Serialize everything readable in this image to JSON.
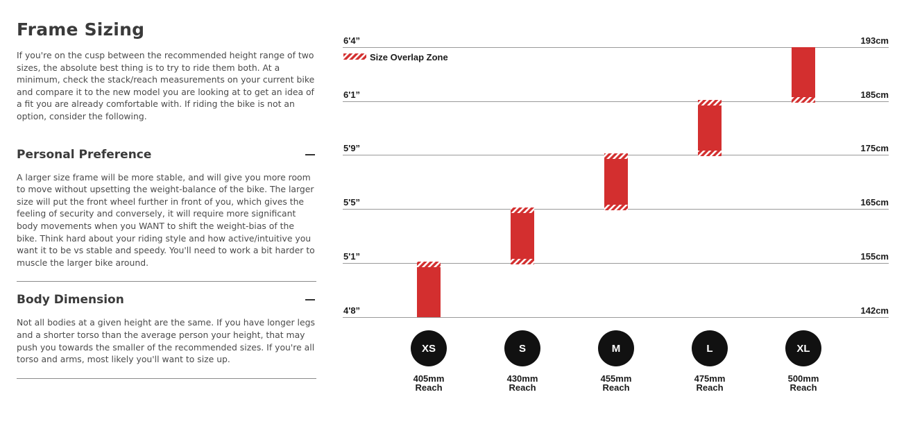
{
  "intro": {
    "title": "Frame Sizing",
    "text": "If you're on the cusp between the recommended height range of two sizes, the absolute best thing is to try to ride them both. At a minimum, check the stack/reach measurements on your current bike and compare it to the new model you are looking at to get an idea of a fit you are already comfortable with. If riding the bike is not an option, consider the following."
  },
  "sections": [
    {
      "title": "Personal Preference",
      "text": "A larger size frame will be more stable, and will give you more room to move without upsetting the weight-balance of the bike. The larger size will put the front wheel further in front of you, which gives the feeling of security and conversely, it will require more significant body movements when you WANT to shift the weight-bias of the bike. Think hard about your riding style and how active/intuitive you want it to be vs stable and speedy. You'll need to work a bit harder to muscle the larger bike around.",
      "icon": "minus-icon"
    },
    {
      "title": "Body Dimension",
      "text": "Not all bodies at a given height are the same. If you have longer legs and a shorter torso than the average person your height, that may push you towards the smaller of the recommended sizes. If you're all torso and arms, most likely you'll want to size up.",
      "icon": "minus-icon"
    }
  ],
  "chart_data": {
    "type": "bar",
    "legend": "Size Overlap Zone",
    "legend_position": "top-left",
    "y_unit": "cm",
    "ylim": [
      142,
      193
    ],
    "grid": true,
    "ticks": [
      {
        "imperial": "4'8”",
        "metric": "142cm",
        "value": 142
      },
      {
        "imperial": "5'1”",
        "metric": "155cm",
        "value": 155
      },
      {
        "imperial": "5'5”",
        "metric": "165cm",
        "value": 165
      },
      {
        "imperial": "5'9”",
        "metric": "175cm",
        "value": 175
      },
      {
        "imperial": "6'1”",
        "metric": "185cm",
        "value": 185
      },
      {
        "imperial": "6'4”",
        "metric": "193cm",
        "value": 193
      }
    ],
    "sizes": [
      {
        "size": "XS",
        "reach": "405mm",
        "reach_label": "Reach",
        "min": 142,
        "max": 155,
        "overlap_low": false,
        "overlap_high": true
      },
      {
        "size": "S",
        "reach": "430mm",
        "reach_label": "Reach",
        "min": 155,
        "max": 165,
        "overlap_low": true,
        "overlap_high": true
      },
      {
        "size": "M",
        "reach": "455mm",
        "reach_label": "Reach",
        "min": 165,
        "max": 175,
        "overlap_low": true,
        "overlap_high": true
      },
      {
        "size": "L",
        "reach": "475mm",
        "reach_label": "Reach",
        "min": 175,
        "max": 185,
        "overlap_low": true,
        "overlap_high": true
      },
      {
        "size": "XL",
        "reach": "500mm",
        "reach_label": "Reach",
        "min": 185,
        "max": 193,
        "overlap_low": true,
        "overlap_high": false
      }
    ],
    "colors": {
      "bar": "#d32f2f",
      "hatch": "#ffffff",
      "grid": "#999999",
      "badge": "#111111",
      "badge_text": "#ffffff",
      "label": "#1a1a1a"
    }
  }
}
